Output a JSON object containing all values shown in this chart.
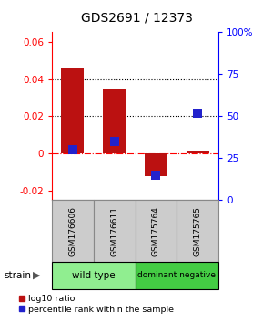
{
  "title": "GDS2691 / 12373",
  "samples": [
    "GSM176606",
    "GSM176611",
    "GSM175764",
    "GSM175765"
  ],
  "log10_ratio": [
    0.046,
    0.035,
    -0.012,
    0.001
  ],
  "percentile_rank": [
    0.3,
    0.35,
    0.15,
    0.52
  ],
  "groups": [
    {
      "label": "wild type",
      "samples": [
        0,
        1
      ],
      "color": "#90EE90"
    },
    {
      "label": "dominant negative",
      "samples": [
        2,
        3
      ],
      "color": "#44CC44"
    }
  ],
  "ylim_left": [
    -0.025,
    0.065
  ],
  "ylim_right": [
    0.0,
    1.0
  ],
  "yticks_left": [
    -0.02,
    0.0,
    0.02,
    0.04,
    0.06
  ],
  "yticks_right": [
    0.0,
    0.25,
    0.5,
    0.75,
    1.0
  ],
  "ytick_labels_left": [
    "-0.02",
    "0",
    "0.02",
    "0.04",
    "0.06"
  ],
  "ytick_labels_right": [
    "0",
    "25",
    "50",
    "75",
    "100%"
  ],
  "hlines": [
    0.0,
    0.02,
    0.04
  ],
  "hline_styles": [
    "dashdot",
    "dotted",
    "dotted"
  ],
  "hline_colors": [
    "red",
    "black",
    "black"
  ],
  "bar_color": "#BB1111",
  "dot_color": "#2222CC",
  "bar_width": 0.55,
  "dot_size": 45,
  "gray_box_color": "#CCCCCC",
  "gray_box_edge": "#888888",
  "fig_bg": "#FFFFFF"
}
